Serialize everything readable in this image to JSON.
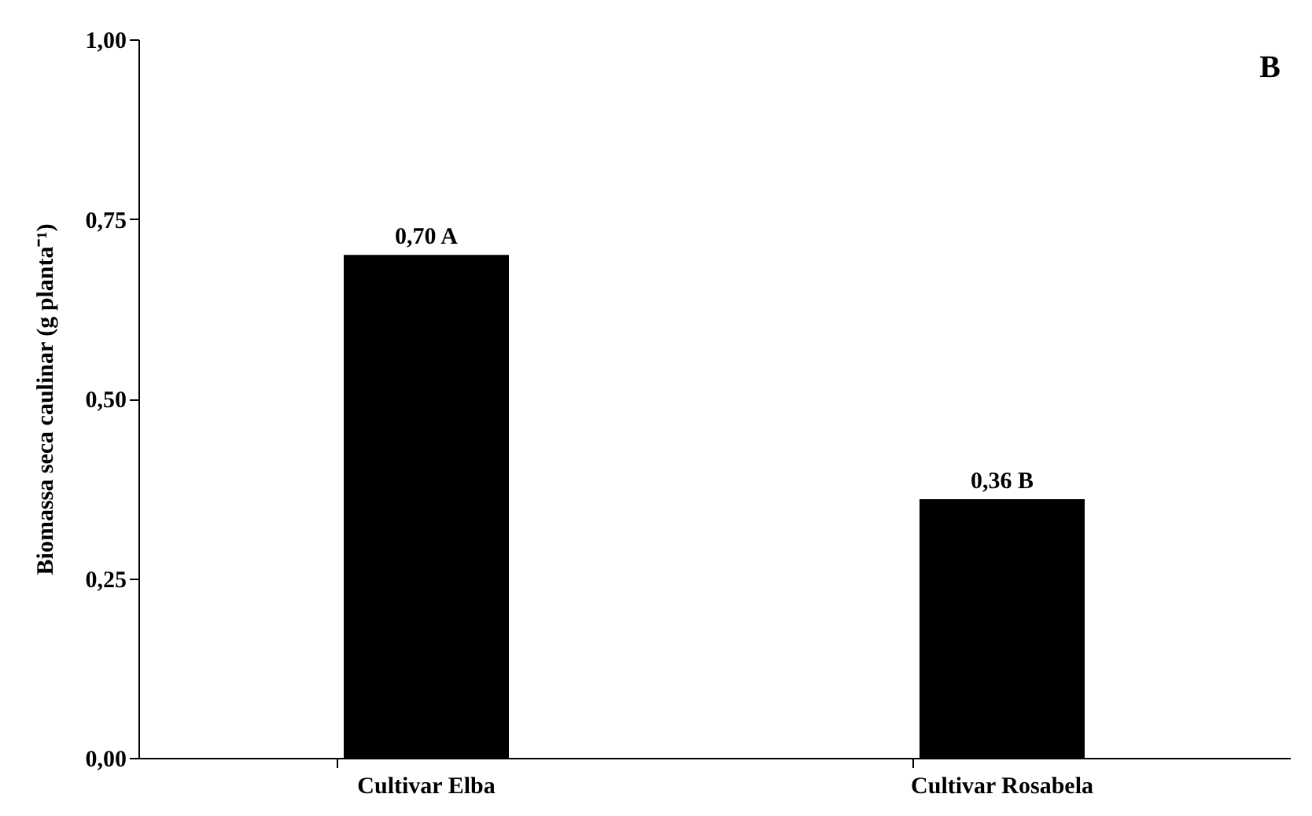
{
  "chart_data": {
    "type": "bar",
    "ylabel": "Biomassa seca caulinar  (g planta⁻¹)",
    "categories": [
      "Cultivar Elba",
      "Cultivar Rosabela"
    ],
    "values": [
      0.7,
      0.36
    ],
    "color": "#000000",
    "value_labels": [
      "0,70 A",
      "0,36 B"
    ],
    "ylim": [
      0,
      1
    ],
    "yticks": [
      {
        "value": 0,
        "label": "0,00"
      },
      {
        "value": 0.25,
        "label": "0,25"
      },
      {
        "value": 0.5,
        "label": "0,50"
      },
      {
        "value": 0.75,
        "label": "0,75"
      },
      {
        "value": 1,
        "label": "1,00"
      }
    ],
    "grid": false,
    "annotations": [
      "B"
    ]
  }
}
